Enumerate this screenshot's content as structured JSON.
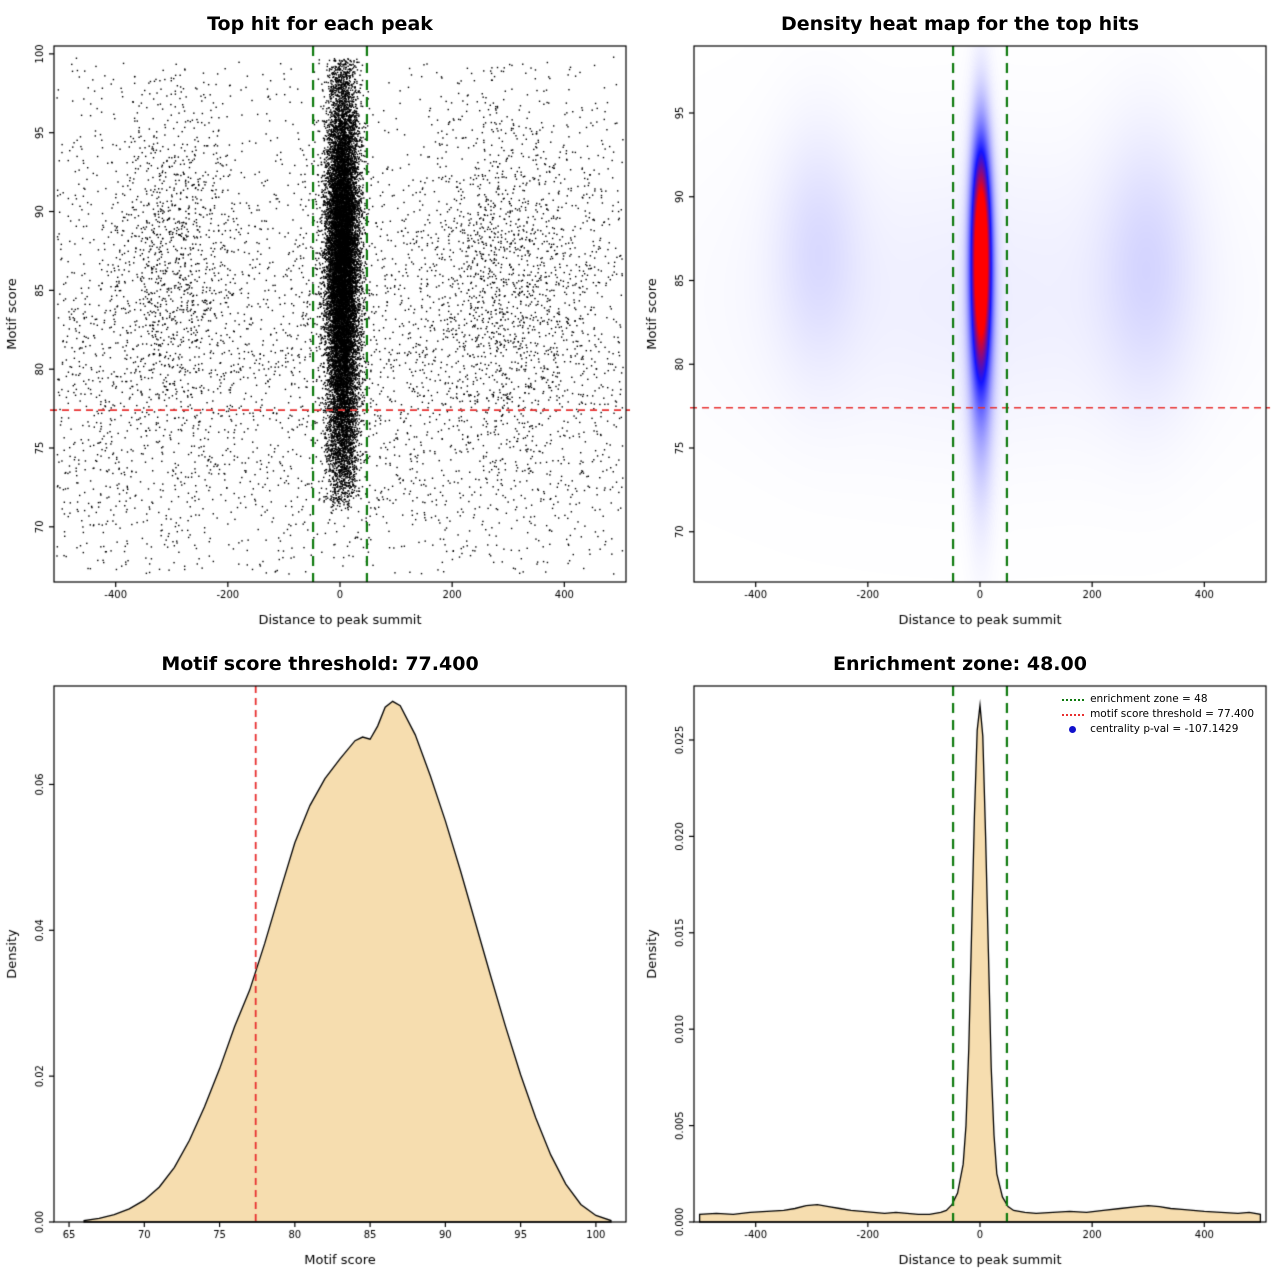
{
  "colors": {
    "background": "#ffffff",
    "point": "#000000",
    "threshold_red": "#e83030",
    "zone_green": "#0e7a0e",
    "density_fill": "#f6ddaf",
    "curve_stroke": "#000000",
    "legend_dot_blue": "#1111cc",
    "heat_blue": "#1414ff",
    "heat_red": "#ff0000"
  },
  "chart_data": [
    {
      "type": "scatter",
      "title": "Top hit for each peak",
      "xlabel": "Distance to peak summit",
      "ylabel": "Motif score",
      "xlim": [
        -510,
        510
      ],
      "ylim": [
        66.5,
        100.5
      ],
      "xticks": [
        -400,
        -200,
        0,
        200,
        400
      ],
      "xtick_labels": [
        "-400",
        "-200",
        "0",
        "200",
        "400"
      ],
      "yticks": [
        70,
        75,
        80,
        85,
        90,
        95,
        100
      ],
      "ytick_labels": [
        "70",
        "75",
        "80",
        "85",
        "90",
        "95",
        "100"
      ],
      "threshold_y": 77.4,
      "zone_x": [
        -48,
        48
      ],
      "clusters": [
        {
          "n": 14000,
          "x": {
            "dist": "normal",
            "mean": 5,
            "sd": 15,
            "clip": [
              -60,
              65
            ]
          },
          "y": {
            "dist": "normal",
            "mean": 87,
            "sd": 6.2,
            "clip": [
              71.5,
              99.7
            ]
          }
        },
        {
          "n": 1200,
          "x": {
            "dist": "normal",
            "mean": 5,
            "sd": 13,
            "clip": [
              -50,
              55
            ]
          },
          "y": {
            "dist": "normal",
            "mean": 76,
            "sd": 2.5,
            "clip": [
              71,
              82
            ]
          }
        },
        {
          "n": 3200,
          "x": {
            "dist": "uniform",
            "min": -505,
            "max": 505
          },
          "y": {
            "dist": "normal",
            "mean": 81,
            "sd": 6.5,
            "clip": [
              67,
              100
            ]
          }
        },
        {
          "n": 380,
          "x": {
            "dist": "uniform",
            "min": -505,
            "max": 505
          },
          "y": {
            "dist": "uniform",
            "min": 67,
            "max": 74.5
          }
        },
        {
          "n": 420,
          "x": {
            "dist": "uniform",
            "min": -505,
            "max": 505
          },
          "y": {
            "dist": "uniform",
            "min": 88,
            "max": 99.5
          }
        },
        {
          "n": 850,
          "x": {
            "dist": "normal",
            "mean": -295,
            "sd": 55,
            "clip": [
              -505,
              -110
            ]
          },
          "y": {
            "dist": "normal",
            "mean": 88,
            "sd": 5.5,
            "clip": [
              70,
              99.3
            ]
          }
        },
        {
          "n": 1050,
          "x": {
            "dist": "normal",
            "mean": 300,
            "sd": 75,
            "clip": [
              110,
              505
            ]
          },
          "y": {
            "dist": "normal",
            "mean": 86.5,
            "sd": 6,
            "clip": [
              70,
              99.3
            ]
          }
        }
      ]
    },
    {
      "type": "heatmap",
      "title": "Density heat map for the top hits",
      "xlabel": "Distance to peak summit",
      "ylabel": "Motif score",
      "xlim": [
        -510,
        510
      ],
      "ylim": [
        67,
        99
      ],
      "xticks": [
        -400,
        -200,
        0,
        200,
        400
      ],
      "xtick_labels": [
        "-400",
        "-200",
        "0",
        "200",
        "400"
      ],
      "yticks": [
        70,
        75,
        80,
        85,
        90,
        95
      ],
      "ytick_labels": [
        "70",
        "75",
        "80",
        "85",
        "90",
        "95"
      ],
      "threshold_y": 77.4,
      "zone_x": [
        -48,
        48
      ],
      "components": [
        {
          "amp": 1.15,
          "cx": 2,
          "sx": 16,
          "cy": 86.5,
          "sy": 6.0
        },
        {
          "amp": 0.3,
          "cx": 2,
          "sx": 22,
          "cy": 83,
          "sy": 9.0
        },
        {
          "amp": 0.06,
          "cx": -290,
          "sx": 75,
          "cy": 87,
          "sy": 7
        },
        {
          "amp": 0.07,
          "cx": 300,
          "sx": 85,
          "cy": 86,
          "sy": 8
        },
        {
          "amp": 0.035,
          "cx": 0,
          "sx": 430,
          "cy": 84,
          "sy": 9
        }
      ]
    },
    {
      "type": "area",
      "title": "Motif score threshold: 77.400",
      "xlabel": "Motif score",
      "ylabel": "Density",
      "xlim": [
        64,
        102
      ],
      "ylim": [
        0,
        0.0735
      ],
      "xticks": [
        65,
        70,
        75,
        80,
        85,
        90,
        95,
        100
      ],
      "xtick_labels": [
        "65",
        "70",
        "75",
        "80",
        "85",
        "90",
        "95",
        "100"
      ],
      "yticks": [
        0,
        0.02,
        0.04,
        0.06
      ],
      "ytick_labels": [
        "0.00",
        "0.02",
        "0.04",
        "0.06"
      ],
      "threshold_x": 77.4,
      "points": [
        [
          66,
          0.0002
        ],
        [
          67,
          0.0005
        ],
        [
          68,
          0.001
        ],
        [
          69,
          0.0018
        ],
        [
          70,
          0.003
        ],
        [
          71,
          0.0048
        ],
        [
          72,
          0.0075
        ],
        [
          73,
          0.0112
        ],
        [
          74,
          0.0158
        ],
        [
          75,
          0.021
        ],
        [
          76,
          0.0268
        ],
        [
          77,
          0.0318
        ],
        [
          78,
          0.0382
        ],
        [
          79,
          0.0452
        ],
        [
          80,
          0.052
        ],
        [
          81,
          0.0571
        ],
        [
          82,
          0.0608
        ],
        [
          83,
          0.0635
        ],
        [
          84,
          0.066
        ],
        [
          84.5,
          0.0665
        ],
        [
          85,
          0.0662
        ],
        [
          85.5,
          0.068
        ],
        [
          86,
          0.0706
        ],
        [
          86.5,
          0.0714
        ],
        [
          87,
          0.0708
        ],
        [
          88,
          0.0668
        ],
        [
          89,
          0.0612
        ],
        [
          90,
          0.055
        ],
        [
          91,
          0.0482
        ],
        [
          92,
          0.041
        ],
        [
          93,
          0.0338
        ],
        [
          94,
          0.0268
        ],
        [
          95,
          0.0202
        ],
        [
          96,
          0.0143
        ],
        [
          97,
          0.0092
        ],
        [
          98,
          0.0052
        ],
        [
          99,
          0.0024
        ],
        [
          100,
          0.0009
        ],
        [
          101,
          0.0002
        ]
      ]
    },
    {
      "type": "area",
      "title": "Enrichment zone: 48.00",
      "xlabel": "Distance to peak summit",
      "ylabel": "Density",
      "xlim": [
        -510,
        510
      ],
      "ylim": [
        0,
        0.0278
      ],
      "xticks": [
        -400,
        -200,
        0,
        200,
        400
      ],
      "xtick_labels": [
        "-400",
        "-200",
        "0",
        "200",
        "400"
      ],
      "yticks": [
        0,
        0.005,
        0.01,
        0.015,
        0.02,
        0.025
      ],
      "ytick_labels": [
        "0.000",
        "0.005",
        "0.010",
        "0.015",
        "0.020",
        "0.025"
      ],
      "zone_x": [
        -48,
        48
      ],
      "legend": [
        {
          "label": "enrichment zone = 48",
          "marker": "green-dotted-line"
        },
        {
          "label": "motif score threshold = 77.400",
          "marker": "red-dotted-line"
        },
        {
          "label": "centrality p-val = -107.1429",
          "marker": "blue-dot"
        }
      ],
      "points": [
        [
          -500,
          0.0004
        ],
        [
          -470,
          0.00045
        ],
        [
          -440,
          0.0004
        ],
        [
          -410,
          0.0005
        ],
        [
          -380,
          0.00055
        ],
        [
          -350,
          0.0006
        ],
        [
          -330,
          0.0007
        ],
        [
          -310,
          0.00085
        ],
        [
          -290,
          0.0009
        ],
        [
          -270,
          0.0008
        ],
        [
          -250,
          0.0007
        ],
        [
          -230,
          0.0006
        ],
        [
          -210,
          0.00055
        ],
        [
          -190,
          0.0005
        ],
        [
          -170,
          0.00045
        ],
        [
          -150,
          0.0005
        ],
        [
          -130,
          0.00045
        ],
        [
          -110,
          0.0004
        ],
        [
          -90,
          0.0004
        ],
        [
          -70,
          0.0005
        ],
        [
          -60,
          0.0006
        ],
        [
          -50,
          0.0009
        ],
        [
          -40,
          0.0015
        ],
        [
          -30,
          0.003
        ],
        [
          -25,
          0.005
        ],
        [
          -20,
          0.009
        ],
        [
          -15,
          0.015
        ],
        [
          -10,
          0.021
        ],
        [
          -5,
          0.0255
        ],
        [
          0,
          0.0268
        ],
        [
          5,
          0.0252
        ],
        [
          10,
          0.02
        ],
        [
          15,
          0.014
        ],
        [
          20,
          0.008
        ],
        [
          25,
          0.0045
        ],
        [
          30,
          0.0025
        ],
        [
          40,
          0.0013
        ],
        [
          50,
          0.0008
        ],
        [
          60,
          0.0006
        ],
        [
          80,
          0.0005
        ],
        [
          100,
          0.00045
        ],
        [
          130,
          0.0005
        ],
        [
          160,
          0.00055
        ],
        [
          190,
          0.0005
        ],
        [
          220,
          0.0006
        ],
        [
          250,
          0.0007
        ],
        [
          280,
          0.0008
        ],
        [
          300,
          0.00085
        ],
        [
          320,
          0.0008
        ],
        [
          340,
          0.0007
        ],
        [
          360,
          0.00065
        ],
        [
          380,
          0.0006
        ],
        [
          400,
          0.00055
        ],
        [
          430,
          0.0005
        ],
        [
          460,
          0.00045
        ],
        [
          480,
          0.0005
        ],
        [
          500,
          0.0004
        ]
      ]
    }
  ]
}
